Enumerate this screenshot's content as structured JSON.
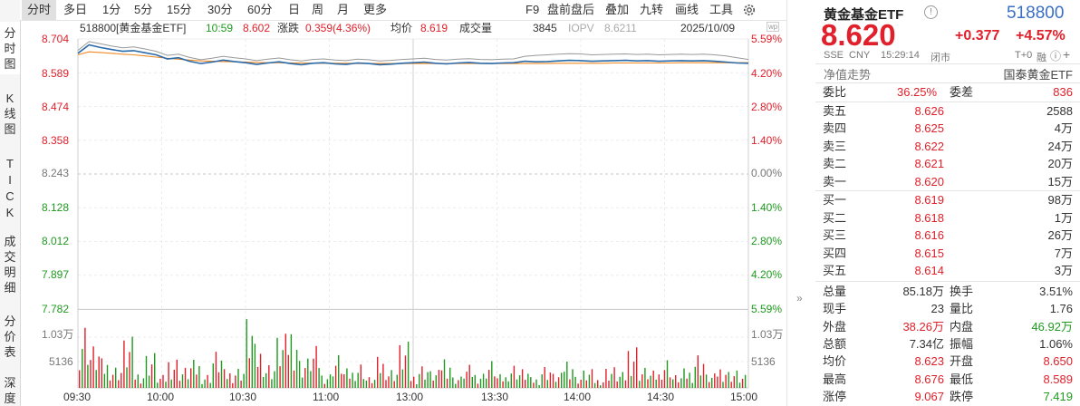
{
  "side_tabs": [
    "分时图",
    "K线图",
    "TICK",
    "成交明细",
    "分价表",
    "深度"
  ],
  "toolbar": {
    "left": [
      "分时",
      "多日",
      "1分",
      "5分",
      "15分",
      "30分",
      "60分",
      "日",
      "周",
      "月",
      "更多"
    ],
    "right": [
      "F9",
      "盘前盘后",
      "叠加",
      "九转",
      "画线",
      "工具"
    ],
    "badge": "wp"
  },
  "info_bar": {
    "name": "518800[黄金基金ETF]",
    "time": "10:59",
    "price": "8.602",
    "change_label": "涨跌",
    "change": "0.359(4.36%)",
    "avg_label": "均价",
    "avg": "8.619",
    "volume_label": "成交量",
    "volume": "3845",
    "iopv_label": "IOPV",
    "iopv": "8.6211",
    "date": "2025/10/09"
  },
  "price_axis": [
    "8.704",
    "8.589",
    "8.474",
    "8.358",
    "8.243",
    "8.128",
    "8.012",
    "7.897",
    "7.782"
  ],
  "pct_axis": [
    "5.59%",
    "4.20%",
    "2.80%",
    "1.40%",
    "0.00%",
    "1.40%",
    "2.80%",
    "4.20%",
    "5.59%"
  ],
  "volume_axis": [
    "1.03万",
    "5136"
  ],
  "time_axis": [
    "09:30",
    "10:00",
    "10:30",
    "11:00",
    "13:00",
    "13:30",
    "14:00",
    "14:30",
    "15:00"
  ],
  "colors": {
    "up": "#e0202a",
    "down": "#1f9a1f",
    "price_line": "#2b6aa8",
    "avg_line": "#f08a24",
    "iopv_line": "#999999"
  },
  "chart_data": {
    "type": "line",
    "price_range": [
      7.782,
      8.704
    ],
    "prev_close": 8.243,
    "series": [
      {
        "name": "",
        "values": [
          8.655,
          8.684,
          8.675,
          8.668,
          8.662,
          8.664,
          8.657,
          8.65,
          8.636,
          8.64,
          8.628,
          8.62,
          8.625,
          8.632,
          8.627,
          8.623,
          8.617,
          8.622,
          8.626,
          8.62,
          8.616,
          8.621,
          8.623,
          8.619,
          8.617,
          8.622,
          8.62,
          8.616,
          8.618,
          8.621,
          8.623,
          8.625,
          8.621,
          8.619,
          8.622,
          8.624,
          8.621,
          8.62,
          8.622,
          8.623,
          8.628,
          8.626,
          8.627,
          8.629,
          8.631,
          8.63,
          8.628,
          8.629,
          8.63,
          8.631,
          8.629,
          8.63,
          8.628,
          8.629,
          8.63,
          8.629,
          8.63,
          8.628,
          8.625,
          8.622,
          8.621
        ]
      },
      {
        "name": "",
        "values": [
          8.65,
          8.66,
          8.658,
          8.655,
          8.652,
          8.65,
          8.646,
          8.642,
          8.638,
          8.635,
          8.632,
          8.629,
          8.628,
          8.627,
          8.626,
          8.625,
          8.624,
          8.623,
          8.623,
          8.622,
          8.622,
          8.621,
          8.621,
          8.621,
          8.621,
          8.62,
          8.62,
          8.62,
          8.62,
          8.62,
          8.62,
          8.62,
          8.62,
          8.62,
          8.62,
          8.62,
          8.62,
          8.62,
          8.62,
          8.62,
          8.62,
          8.62,
          8.62,
          8.621,
          8.621,
          8.621,
          8.621,
          8.621,
          8.622,
          8.622,
          8.622,
          8.622,
          8.622,
          8.622,
          8.623,
          8.623,
          8.623,
          8.623,
          8.623,
          8.623,
          8.623
        ]
      },
      {
        "name": "",
        "values": [
          8.665,
          8.695,
          8.688,
          8.68,
          8.674,
          8.677,
          8.67,
          8.662,
          8.648,
          8.652,
          8.641,
          8.633,
          8.638,
          8.645,
          8.64,
          8.636,
          8.63,
          8.635,
          8.639,
          8.633,
          8.629,
          8.634,
          8.636,
          8.632,
          8.63,
          8.635,
          8.633,
          8.629,
          8.631,
          8.634,
          8.636,
          8.638,
          8.634,
          8.632,
          8.635,
          8.637,
          8.634,
          8.633,
          8.635,
          8.636,
          8.645,
          8.648,
          8.65,
          8.652,
          8.654,
          8.653,
          8.65,
          8.651,
          8.652,
          8.653,
          8.651,
          8.652,
          8.65,
          8.651,
          8.652,
          8.651,
          8.652,
          8.65,
          8.646,
          8.64,
          8.634
        ]
      }
    ],
    "volume": [
      {
        "v": 9800,
        "d": "up"
      },
      {
        "v": 6200,
        "d": "up"
      },
      {
        "v": 4100,
        "d": "down"
      },
      {
        "v": 3300,
        "d": "up"
      },
      {
        "v": 7100,
        "d": "down"
      },
      {
        "v": 2400,
        "d": "up"
      },
      {
        "v": 5200,
        "d": "down"
      },
      {
        "v": 1800,
        "d": "up"
      },
      {
        "v": 4600,
        "d": "up"
      },
      {
        "v": 3000,
        "d": "down"
      },
      {
        "v": 3900,
        "d": "up"
      },
      {
        "v": 2100,
        "d": "down"
      },
      {
        "v": 5400,
        "d": "up"
      },
      {
        "v": 2600,
        "d": "up"
      },
      {
        "v": 3100,
        "d": "down"
      },
      {
        "v": 10300,
        "d": "down"
      },
      {
        "v": 6100,
        "d": "up"
      },
      {
        "v": 3700,
        "d": "down"
      },
      {
        "v": 7500,
        "d": "up"
      },
      {
        "v": 9600,
        "d": "up"
      },
      {
        "v": 4400,
        "d": "down"
      },
      {
        "v": 5800,
        "d": "up"
      },
      {
        "v": 2200,
        "d": "down"
      },
      {
        "v": 4900,
        "d": "up"
      },
      {
        "v": 2700,
        "d": "up"
      },
      {
        "v": 3800,
        "d": "down"
      },
      {
        "v": 1600,
        "d": "up"
      },
      {
        "v": 4300,
        "d": "up"
      },
      {
        "v": 2900,
        "d": "down"
      },
      {
        "v": 6400,
        "d": "up"
      },
      {
        "v": 2000,
        "d": "up"
      },
      {
        "v": 3500,
        "d": "down"
      },
      {
        "v": 2500,
        "d": "up"
      },
      {
        "v": 5100,
        "d": "up"
      },
      {
        "v": 1700,
        "d": "down"
      },
      {
        "v": 3200,
        "d": "up"
      },
      {
        "v": 2300,
        "d": "down"
      },
      {
        "v": 4000,
        "d": "up"
      },
      {
        "v": 1900,
        "d": "up"
      },
      {
        "v": 3600,
        "d": "down"
      },
      {
        "v": 2800,
        "d": "up"
      },
      {
        "v": 1500,
        "d": "down"
      },
      {
        "v": 3400,
        "d": "up"
      },
      {
        "v": 2100,
        "d": "up"
      },
      {
        "v": 4700,
        "d": "down"
      },
      {
        "v": 1800,
        "d": "up"
      },
      {
        "v": 2600,
        "d": "up"
      },
      {
        "v": 1400,
        "d": "down"
      },
      {
        "v": 3100,
        "d": "up"
      },
      {
        "v": 2200,
        "d": "down"
      },
      {
        "v": 6600,
        "d": "up"
      },
      {
        "v": 3000,
        "d": "up"
      },
      {
        "v": 2400,
        "d": "down"
      },
      {
        "v": 4500,
        "d": "up"
      },
      {
        "v": 1900,
        "d": "up"
      },
      {
        "v": 2700,
        "d": "down"
      },
      {
        "v": 5300,
        "d": "up"
      },
      {
        "v": 2000,
        "d": "down"
      },
      {
        "v": 3300,
        "d": "up"
      },
      {
        "v": 2600,
        "d": "up"
      },
      {
        "v": 1800,
        "d": "down"
      }
    ]
  },
  "quote": {
    "name": "黄金基金ETF",
    "code": "518800",
    "price": "8.620",
    "change": "+0.377",
    "change_pct": "+4.57%",
    "market": "SSE",
    "currency": "CNY",
    "time": "15:29:14",
    "status": "闭市",
    "t0": "T+0",
    "t0_tag": "融",
    "nav_label": "净值走势",
    "issuer": "国泰黄金ETF"
  },
  "order_book": {
    "commit_ratio_label": "委比",
    "commit_ratio": "36.25%",
    "commit_diff_label": "委差",
    "commit_diff": "836",
    "asks": [
      {
        "label": "卖五",
        "price": "8.626",
        "vol": "2588"
      },
      {
        "label": "卖四",
        "price": "8.625",
        "vol": "4万"
      },
      {
        "label": "卖三",
        "price": "8.622",
        "vol": "24万"
      },
      {
        "label": "卖二",
        "price": "8.621",
        "vol": "20万"
      },
      {
        "label": "卖一",
        "price": "8.620",
        "vol": "15万"
      }
    ],
    "bids": [
      {
        "label": "买一",
        "price": "8.619",
        "vol": "98万"
      },
      {
        "label": "买二",
        "price": "8.618",
        "vol": "1万"
      },
      {
        "label": "买三",
        "price": "8.616",
        "vol": "26万"
      },
      {
        "label": "买四",
        "price": "8.615",
        "vol": "7万"
      },
      {
        "label": "买五",
        "price": "8.614",
        "vol": "3万"
      }
    ]
  },
  "stats": [
    {
      "l1": "总量",
      "v1": "85.18万",
      "c1": "dark",
      "l2": "换手",
      "v2": "3.51%",
      "c2": "dark"
    },
    {
      "l1": "现手",
      "v1": "23",
      "c1": "dark",
      "l2": "量比",
      "v2": "1.76",
      "c2": "dark"
    },
    {
      "l1": "外盘",
      "v1": "38.26万",
      "c1": "red",
      "l2": "内盘",
      "v2": "46.92万",
      "c2": "green"
    },
    {
      "l1": "总额",
      "v1": "7.34亿",
      "c1": "dark",
      "l2": "振幅",
      "v2": "1.06%",
      "c2": "dark"
    },
    {
      "l1": "均价",
      "v1": "8.623",
      "c1": "red",
      "l2": "开盘",
      "v2": "8.650",
      "c2": "red"
    },
    {
      "l1": "最高",
      "v1": "8.676",
      "c1": "red",
      "l2": "最低",
      "v2": "8.589",
      "c2": "red"
    },
    {
      "l1": "涨停",
      "v1": "9.067",
      "c1": "red",
      "l2": "跌停",
      "v2": "7.419",
      "c2": "green"
    }
  ],
  "collapse_glyph": "»"
}
